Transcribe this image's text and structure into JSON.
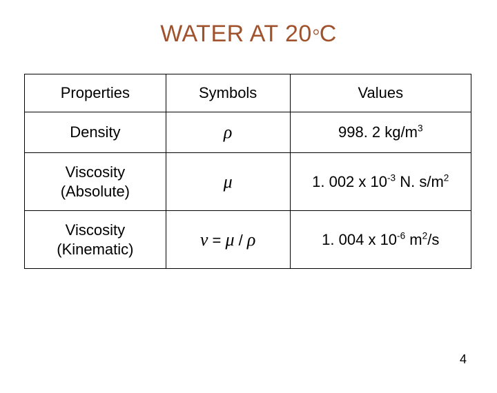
{
  "title_main": "WATER AT 20",
  "title_deg": "°",
  "title_unit": "C",
  "columns": [
    "Properties",
    "Symbols",
    "Values"
  ],
  "rows": [
    {
      "property": "Density",
      "symbol_html": "<span class='sym'>ρ</span>",
      "value_html": "998. 2 kg/m<sup>3</sup>"
    },
    {
      "property": "Viscosity<br>(Absolute)",
      "symbol_html": "<span class='sym'>μ</span>",
      "value_html": "1. 002 x 10<sup>-3</sup> N. s/m<sup>2</sup>"
    },
    {
      "property": "Viscosity<br>(Kinematic)",
      "symbol_html": "<span class='sym'>ν</span> = <span class='sym'>μ</span> / <span class='sym'>ρ</span>",
      "value_html": "1. 004 x 10<sup>-6</sup> m<sup>2</sup>/s"
    }
  ],
  "page_number": "4",
  "colors": {
    "title": "#a0522d",
    "border": "#000000",
    "text": "#000000",
    "background": "#ffffff"
  }
}
